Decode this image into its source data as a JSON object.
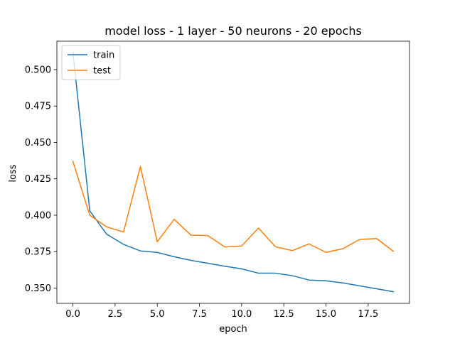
{
  "chart_data": {
    "type": "line",
    "title": "model loss - 1 layer - 50 neurons - 20 epochs",
    "xlabel": "epoch",
    "ylabel": "loss",
    "xlim": [
      -0.95,
      19.95
    ],
    "ylim": [
      0.3395,
      0.5195
    ],
    "xticks": [
      0.0,
      2.5,
      5.0,
      7.5,
      10.0,
      12.5,
      15.0,
      17.5
    ],
    "xtick_labels": [
      "0.0",
      "2.5",
      "5.0",
      "7.5",
      "10.0",
      "12.5",
      "15.0",
      "17.5"
    ],
    "yticks": [
      0.35,
      0.375,
      0.4,
      0.425,
      0.45,
      0.475,
      0.5
    ],
    "ytick_labels": [
      "0.350",
      "0.375",
      "0.400",
      "0.425",
      "0.450",
      "0.475",
      "0.500"
    ],
    "grid": false,
    "legend_position": "top-left",
    "x": [
      0,
      1,
      2,
      3,
      4,
      5,
      6,
      7,
      8,
      9,
      10,
      11,
      12,
      13,
      14,
      15,
      16,
      17,
      18,
      19
    ],
    "series": [
      {
        "name": "train",
        "color": "#1f77b4",
        "values": [
          0.512,
          0.403,
          0.387,
          0.38,
          0.3755,
          0.3745,
          0.3715,
          0.369,
          0.367,
          0.365,
          0.3632,
          0.3602,
          0.3602,
          0.3585,
          0.3555,
          0.355,
          0.3535,
          0.3515,
          0.3495,
          0.3475
        ]
      },
      {
        "name": "test",
        "color": "#ff7f0e",
        "values": [
          0.437,
          0.4,
          0.392,
          0.3885,
          0.4335,
          0.3818,
          0.3972,
          0.3863,
          0.386,
          0.3782,
          0.3789,
          0.3912,
          0.3784,
          0.3757,
          0.3803,
          0.3745,
          0.377,
          0.3834,
          0.384,
          0.3752
        ]
      }
    ]
  }
}
